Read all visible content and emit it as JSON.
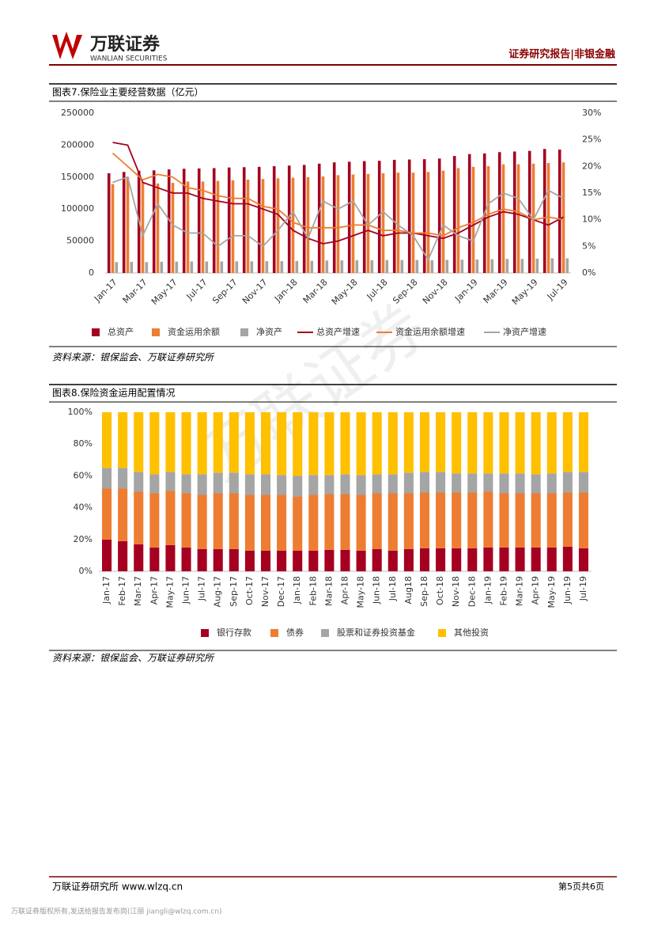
{
  "header": {
    "logo_cn": "万联证券",
    "logo_en": "WANLIAN SECURITIES",
    "report_type": "证券研究报告|非银金融"
  },
  "watermark": "万联证券",
  "chart_data": [
    {
      "type": "bar",
      "title": "图表7.保险业主要经营数据（亿元）",
      "source": "资料来源：银保监会、万联证券研究所",
      "categories": [
        "Jan-17",
        null,
        "Mar-17",
        null,
        "May-17",
        null,
        "Jul-17",
        null,
        "Sep-17",
        null,
        "Nov-17",
        null,
        "Jan-18",
        null,
        "Mar-18",
        null,
        "May-18",
        null,
        "Jul-18",
        null,
        "Sep-18",
        null,
        "Nov-18",
        null,
        "Jan-19",
        null,
        "Mar-19",
        null,
        "May-19",
        null,
        "Jul-19"
      ],
      "ylim": [
        0,
        250000
      ],
      "yticks": [
        0,
        50000,
        100000,
        150000,
        200000,
        250000
      ],
      "y2lim": [
        0,
        30
      ],
      "y2ticks": [
        {
          "value": 0,
          "label": "0%"
        },
        {
          "value": 5,
          "label": "5%"
        },
        {
          "value": 10,
          "label": "10%"
        },
        {
          "value": 15,
          "label": "15%"
        },
        {
          "value": 20,
          "label": "20%"
        },
        {
          "value": 25,
          "label": "25%"
        },
        {
          "value": 30,
          "label": "30%"
        }
      ],
      "series": [
        {
          "name": "总资产",
          "type": "bar",
          "color": "#a50021",
          "values": [
            156000,
            158000,
            160000,
            160500,
            162000,
            163000,
            163500,
            164000,
            165000,
            165500,
            166000,
            167000,
            168000,
            169000,
            171000,
            173000,
            174000,
            175000,
            175500,
            177000,
            177500,
            178000,
            179000,
            183000,
            186000,
            187000,
            189000,
            190000,
            191000,
            194000,
            193000
          ]
        },
        {
          "name": "资金运用余额",
          "type": "bar",
          "color": "#ed7d31",
          "values": [
            139000,
            150000,
            142000,
            140000,
            141000,
            143000,
            143000,
            144000,
            145000,
            146000,
            147000,
            148000,
            149000,
            150000,
            151000,
            153000,
            154000,
            155000,
            156000,
            157000,
            157000,
            158000,
            160000,
            164000,
            166000,
            167000,
            170000,
            170000,
            171000,
            172000,
            173000
          ]
        },
        {
          "name": "净资产",
          "type": "bar",
          "color": "#a5a5a5",
          "values": [
            17000,
            17500,
            17000,
            17500,
            17800,
            18000,
            18000,
            18000,
            18200,
            18300,
            18500,
            18500,
            18800,
            19000,
            19500,
            19800,
            20000,
            20000,
            20200,
            20300,
            20300,
            20000,
            20500,
            20800,
            21000,
            21500,
            22000,
            22000,
            22500,
            23000,
            23000
          ]
        },
        {
          "name": "总资产增速",
          "type": "line",
          "axis": "y2",
          "color": "#a50021",
          "values": [
            24.5,
            24,
            17,
            16,
            15,
            15,
            14,
            13.5,
            13,
            13,
            12,
            11,
            8,
            6.5,
            5.5,
            6,
            7,
            8,
            7,
            7.5,
            7.5,
            7,
            6.5,
            7.5,
            9,
            10.5,
            11.5,
            11,
            10,
            9,
            10.5
          ]
        },
        {
          "name": "资金运用余额增速",
          "type": "line",
          "axis": "y2",
          "color": "#ed7d31",
          "values": [
            22.5,
            20,
            17.5,
            18.5,
            18,
            16,
            15.5,
            14.5,
            14,
            14,
            12.5,
            12,
            9.5,
            8.5,
            8.5,
            8.5,
            9,
            9,
            8,
            8,
            7.5,
            7.5,
            7,
            8.5,
            9.5,
            11,
            12,
            11.5,
            10,
            10.5,
            10
          ]
        },
        {
          "name": "净资产增速",
          "type": "line",
          "axis": "y2",
          "color": "#a5a5a5",
          "values": [
            17,
            18,
            7,
            13,
            9,
            7.5,
            7.5,
            5,
            7,
            7,
            5,
            8,
            11.5,
            6.5,
            13.5,
            12,
            13.5,
            9,
            11.5,
            9,
            7,
            2.5,
            9,
            7,
            6,
            13,
            15,
            14,
            10,
            15.5,
            14
          ]
        }
      ]
    },
    {
      "type": "stacked_bar",
      "title": "图表8.保险资金运用配置情况",
      "source": "资料来源：银保监会、万联证券研究所",
      "categories": [
        "Jan-17",
        "Feb-17",
        "Mar-17",
        "Apr-17",
        "May-17",
        "Jun-17",
        "Jul-17",
        "Aug-17",
        "Sep-17",
        "Oct-17",
        "Nov-17",
        "Dec-17",
        "Jan-18",
        "Feb-18",
        "Mar-18",
        "Apr-18",
        "May-18",
        "Jun-18",
        "Jul-18",
        "Aug18",
        "Sep-18",
        "Oct-18",
        "Nov-18",
        "Dec-18",
        "Jan-19",
        "Feb-19",
        "Mar-19",
        "Apr-19",
        "May-19",
        "Jun-19",
        "Jul-19"
      ],
      "ylim": [
        0,
        100
      ],
      "yticks": [
        {
          "value": 0,
          "label": "0%"
        },
        {
          "value": 20,
          "label": "20%"
        },
        {
          "value": 40,
          "label": "40%"
        },
        {
          "value": 60,
          "label": "60%"
        },
        {
          "value": 80,
          "label": "80%"
        },
        {
          "value": 100,
          "label": "100%"
        }
      ],
      "series": [
        {
          "name": "银行存款",
          "color": "#a50021",
          "values": [
            20,
            19,
            17,
            15,
            16.5,
            15,
            14,
            14,
            14,
            13,
            13,
            13,
            13,
            13,
            13.5,
            13.5,
            13,
            14,
            13,
            14,
            14.5,
            14.5,
            14.5,
            14.5,
            15,
            15,
            15,
            15,
            15,
            15.5,
            14.5
          ]
        },
        {
          "name": "债券",
          "color": "#ed7d31",
          "values": [
            32,
            33,
            33,
            34,
            34,
            34,
            34,
            35,
            35,
            35,
            35,
            35,
            34,
            35,
            35,
            35,
            35,
            35,
            36,
            35,
            35,
            35,
            35,
            35,
            35,
            34,
            34,
            34,
            34,
            34,
            35
          ]
        },
        {
          "name": "股票和证券投资基金",
          "color": "#a5a5a5",
          "values": [
            13,
            13,
            12.5,
            12,
            12,
            12,
            13,
            13,
            13,
            13,
            13,
            12.5,
            13,
            12.5,
            12,
            12.5,
            12.5,
            12,
            12,
            13,
            13,
            13,
            12,
            12,
            11.5,
            12.5,
            12.5,
            12,
            12.5,
            13,
            13
          ]
        },
        {
          "name": "其他投资",
          "color": "#ffc000",
          "values": [
            35,
            35,
            37.5,
            39,
            37.5,
            39,
            39,
            38,
            38,
            39,
            39,
            39.5,
            40,
            39.5,
            39.5,
            39,
            39.5,
            39,
            39,
            38,
            37.5,
            37.5,
            38.5,
            38.5,
            38.5,
            38.5,
            38.5,
            39,
            38.5,
            37.5,
            37.5
          ]
        }
      ]
    }
  ],
  "footer": {
    "institute": "万联证券研究所 www.wlzq.cn",
    "page": "第5页共6页",
    "copyright": "万联证券版权所有,发送给报告发布岗(江丽 jiangli@wlzq.com.cn)"
  }
}
